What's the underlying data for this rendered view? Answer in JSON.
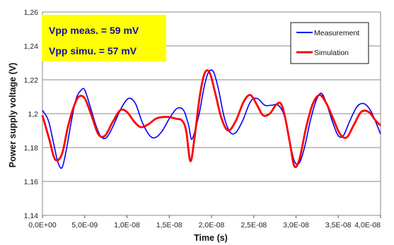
{
  "chart_data": {
    "type": "line",
    "xlabel": "Time (s)",
    "ylabel": "Power supply voltage (V)",
    "xlim": [
      0,
      4e-08
    ],
    "ylim": [
      1.14,
      1.26
    ],
    "x_ticks": [
      0,
      5e-09,
      1e-08,
      1.5e-08,
      2e-08,
      2.5e-08,
      3e-08,
      3.5e-08,
      4e-08
    ],
    "x_tick_labels": [
      "0,0E+00",
      "5,0E-09",
      "1,0E-08",
      "1,5E-08",
      "2,0E-08",
      "2,5E-08",
      "3,0E-08",
      "3,5E-08",
      "4,0E-08"
    ],
    "y_ticks": [
      1.14,
      1.16,
      1.18,
      1.2,
      1.22,
      1.24,
      1.26
    ],
    "y_tick_labels": [
      "1,14",
      "1,16",
      "1,18",
      "1,2",
      "1,22",
      "1,24",
      "1,26"
    ],
    "grid": true,
    "legend_position": "top-right",
    "annotations": [
      "Vpp meas. = 59 mV",
      "Vpp simu. = 57 mV"
    ],
    "annotation_bg": "#ffff00",
    "series": [
      {
        "name": "Measurement",
        "color": "#0000ff",
        "points": [
          [
            0,
            1.202
          ],
          [
            7e-10,
            1.196
          ],
          [
            1.3e-09,
            1.183
          ],
          [
            1.8e-09,
            1.172
          ],
          [
            2.3e-09,
            1.168
          ],
          [
            2.8e-09,
            1.178
          ],
          [
            3.4e-09,
            1.195
          ],
          [
            4e-09,
            1.209
          ],
          [
            4.6e-09,
            1.214
          ],
          [
            5e-09,
            1.214
          ],
          [
            5.6e-09,
            1.205
          ],
          [
            6.4e-09,
            1.192
          ],
          [
            7e-09,
            1.186
          ],
          [
            7.6e-09,
            1.186
          ],
          [
            8.3e-09,
            1.192
          ],
          [
            9.3e-09,
            1.203
          ],
          [
            1.02e-08,
            1.209
          ],
          [
            1.1e-08,
            1.206
          ],
          [
            1.18e-08,
            1.195
          ],
          [
            1.27e-08,
            1.187
          ],
          [
            1.34e-08,
            1.186
          ],
          [
            1.42e-08,
            1.19
          ],
          [
            1.5e-08,
            1.197
          ],
          [
            1.59e-08,
            1.203
          ],
          [
            1.67e-08,
            1.202
          ],
          [
            1.73e-08,
            1.193
          ],
          [
            1.77e-08,
            1.185
          ],
          [
            1.85e-08,
            1.199
          ],
          [
            1.91e-08,
            1.215
          ],
          [
            1.96e-08,
            1.224
          ],
          [
            2.02e-08,
            1.225
          ],
          [
            2.08e-08,
            1.215
          ],
          [
            2.15e-08,
            1.198
          ],
          [
            2.22e-08,
            1.189
          ],
          [
            2.29e-08,
            1.189
          ],
          [
            2.37e-08,
            1.196
          ],
          [
            2.46e-08,
            1.207
          ],
          [
            2.54e-08,
            1.209
          ],
          [
            2.63e-08,
            1.205
          ],
          [
            2.71e-08,
            1.205
          ],
          [
            2.79e-08,
            1.205
          ],
          [
            2.86e-08,
            1.199
          ],
          [
            2.92e-08,
            1.185
          ],
          [
            2.98e-08,
            1.172
          ],
          [
            3.04e-08,
            1.171
          ],
          [
            3.1e-08,
            1.18
          ],
          [
            3.17e-08,
            1.196
          ],
          [
            3.24e-08,
            1.208
          ],
          [
            3.3e-08,
            1.212
          ],
          [
            3.36e-08,
            1.206
          ],
          [
            3.44e-08,
            1.194
          ],
          [
            3.5e-08,
            1.187
          ],
          [
            3.56e-08,
            1.187
          ],
          [
            3.63e-08,
            1.195
          ],
          [
            3.72e-08,
            1.204
          ],
          [
            3.8e-08,
            1.206
          ],
          [
            3.88e-08,
            1.202
          ],
          [
            3.96e-08,
            1.193
          ],
          [
            4e-08,
            1.188
          ]
        ]
      },
      {
        "name": "Simulation",
        "color": "#ff0000",
        "points": [
          [
            0,
            1.199
          ],
          [
            8e-10,
            1.185
          ],
          [
            1.5e-09,
            1.173
          ],
          [
            2.3e-09,
            1.176
          ],
          [
            3e-09,
            1.192
          ],
          [
            3.7e-09,
            1.204
          ],
          [
            4.3e-09,
            1.21
          ],
          [
            5e-09,
            1.209
          ],
          [
            5.8e-09,
            1.199
          ],
          [
            6.6e-09,
            1.188
          ],
          [
            7.4e-09,
            1.187
          ],
          [
            8.3e-09,
            1.195
          ],
          [
            9.2e-09,
            1.202
          ],
          [
            1e-08,
            1.201
          ],
          [
            1.09e-08,
            1.195
          ],
          [
            1.17e-08,
            1.192
          ],
          [
            1.26e-08,
            1.194
          ],
          [
            1.34e-08,
            1.197
          ],
          [
            1.42e-08,
            1.198
          ],
          [
            1.5e-08,
            1.198
          ],
          [
            1.58e-08,
            1.197
          ],
          [
            1.65e-08,
            1.196
          ],
          [
            1.7e-08,
            1.19
          ],
          [
            1.75e-08,
            1.172
          ],
          [
            1.8e-08,
            1.186
          ],
          [
            1.86e-08,
            1.21
          ],
          [
            1.92e-08,
            1.224
          ],
          [
            1.98e-08,
            1.224
          ],
          [
            2.04e-08,
            1.213
          ],
          [
            2.12e-08,
            1.197
          ],
          [
            2.2e-08,
            1.19
          ],
          [
            2.29e-08,
            1.196
          ],
          [
            2.38e-08,
            1.207
          ],
          [
            2.46e-08,
            1.211
          ],
          [
            2.54e-08,
            1.205
          ],
          [
            2.61e-08,
            1.199
          ],
          [
            2.69e-08,
            1.2
          ],
          [
            2.76e-08,
            1.205
          ],
          [
            2.82e-08,
            1.206
          ],
          [
            2.87e-08,
            1.198
          ],
          [
            2.93e-08,
            1.182
          ],
          [
            2.98e-08,
            1.169
          ],
          [
            3.04e-08,
            1.173
          ],
          [
            3.12e-08,
            1.192
          ],
          [
            3.2e-08,
            1.206
          ],
          [
            3.28e-08,
            1.211
          ],
          [
            3.36e-08,
            1.206
          ],
          [
            3.44e-08,
            1.197
          ],
          [
            3.52e-08,
            1.188
          ],
          [
            3.6e-08,
            1.186
          ],
          [
            3.68e-08,
            1.193
          ],
          [
            3.77e-08,
            1.201
          ],
          [
            3.86e-08,
            1.201
          ],
          [
            3.94e-08,
            1.196
          ],
          [
            4e-08,
            1.193
          ]
        ]
      }
    ]
  }
}
